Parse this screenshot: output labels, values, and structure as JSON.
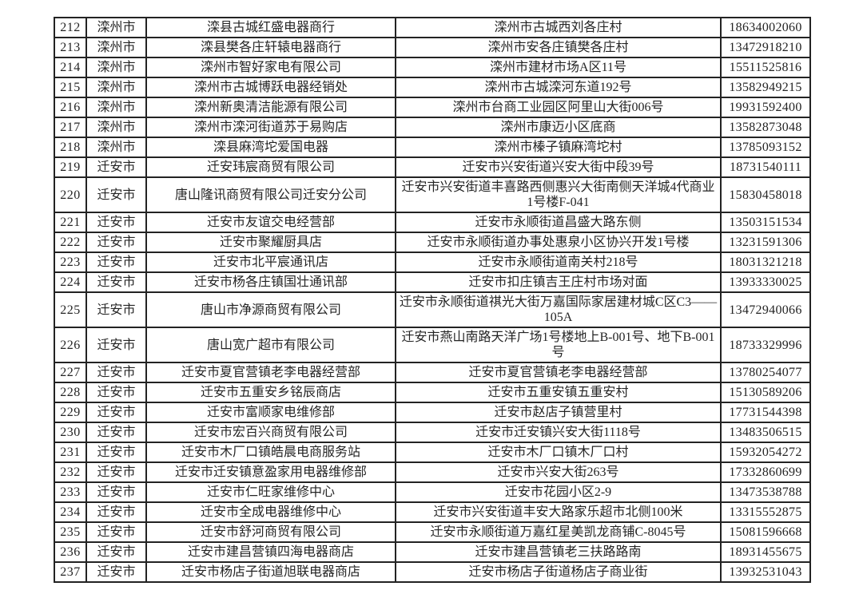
{
  "page": {
    "background": "#ffffff",
    "border_color": "#232323",
    "text_color": "#242424"
  },
  "table": {
    "rows": [
      {
        "no": "212",
        "city": "滦州市",
        "name": "滦县古城红盛电器商行",
        "address": "滦州市古城西刘各庄村",
        "phone": "18634002060"
      },
      {
        "no": "213",
        "city": "滦州市",
        "name": "滦县樊各庄轩辕电器商行",
        "address": "滦州市安各庄镇樊各庄村",
        "phone": "13472918210"
      },
      {
        "no": "214",
        "city": "滦州市",
        "name": "滦州市智好家电有限公司",
        "address": "滦州市建材市场A区11号",
        "phone": "15511525816"
      },
      {
        "no": "215",
        "city": "滦州市",
        "name": "滦州市古城博跃电器经销处",
        "address": "滦州市古城滦河东道192号",
        "phone": "13582949215"
      },
      {
        "no": "216",
        "city": "滦州市",
        "name": "滦州新奥清洁能源有限公司",
        "address": "滦州市台商工业园区阿里山大街006号",
        "phone": "19931592400"
      },
      {
        "no": "217",
        "city": "滦州市",
        "name": "滦州市滦河街道苏于易购店",
        "address": "滦州市康迈小区底商",
        "phone": "13582873048"
      },
      {
        "no": "218",
        "city": "滦州市",
        "name": "滦县麻湾坨爱国电器",
        "address": "滦州市榛子镇麻湾坨村",
        "phone": "13785093152"
      },
      {
        "no": "219",
        "city": "迁安市",
        "name": "迁安玮宸商贸有限公司",
        "address": "迁安市兴安街道兴安大街中段39号",
        "phone": "18731540111"
      },
      {
        "no": "220",
        "city": "迁安市",
        "name": "唐山隆讯商贸有限公司迁安分公司",
        "address": "迁安市兴安街道丰喜路西侧惠兴大街南侧天洋城4代商业1号楼F-041",
        "phone": "15830458018"
      },
      {
        "no": "221",
        "city": "迁安市",
        "name": "迁安市友谊交电经营部",
        "address": "迁安市永顺街道昌盛大路东侧",
        "phone": "13503151534"
      },
      {
        "no": "222",
        "city": "迁安市",
        "name": "迁安市聚耀厨具店",
        "address": "迁安市永顺街道办事处惠泉小区协兴开发1号楼",
        "phone": "13231591306"
      },
      {
        "no": "223",
        "city": "迁安市",
        "name": "迁安市北平宸通讯店",
        "address": "迁安市永顺街道南关村218号",
        "phone": "18031321218"
      },
      {
        "no": "224",
        "city": "迁安市",
        "name": "迁安市杨各庄镇国壮通讯部",
        "address": "迁安市扣庄镇吉王庄村市场对面",
        "phone": "13933330025"
      },
      {
        "no": "225",
        "city": "迁安市",
        "name": "唐山市净源商贸有限公司",
        "address": "迁安市永顺街道祺光大街万嘉国际家居建材城C区C3——105A",
        "phone": "13472940066"
      },
      {
        "no": "226",
        "city": "迁安市",
        "name": "唐山宽广超市有限公司",
        "address": "迁安市燕山南路天洋广场1号楼地上B-001号、地下B-001号",
        "phone": "18733329996"
      },
      {
        "no": "227",
        "city": "迁安市",
        "name": "迁安市夏官营镇老李电器经营部",
        "address": "迁安市夏官营镇老李电器经营部",
        "phone": "13780254077"
      },
      {
        "no": "228",
        "city": "迁安市",
        "name": "迁安市五重安乡铭辰商店",
        "address": "迁安市五重安镇五重安村",
        "phone": "15130589206"
      },
      {
        "no": "229",
        "city": "迁安市",
        "name": "迁安市富顺家电维修部",
        "address": "迁安市赵店子镇营里村",
        "phone": "17731544398"
      },
      {
        "no": "230",
        "city": "迁安市",
        "name": "迁安市宏百兴商贸有限公司",
        "address": "迁安市迁安镇兴安大街1118号",
        "phone": "13483506515"
      },
      {
        "no": "231",
        "city": "迁安市",
        "name": "迁安市木厂口镇皓晨电商服务站",
        "address": "迁安市木厂口镇木厂口村",
        "phone": "15932054272"
      },
      {
        "no": "232",
        "city": "迁安市",
        "name": "迁安市迁安镇意盈家用电器维修部",
        "address": "迁安市兴安大街263号",
        "phone": "17332860699"
      },
      {
        "no": "233",
        "city": "迁安市",
        "name": "迁安市仁旺家维修中心",
        "address": "迁安市花园小区2-9",
        "phone": "13473538788"
      },
      {
        "no": "234",
        "city": "迁安市",
        "name": "迁安市全成电器维修中心",
        "address": "迁安市兴安街道丰安大路家乐超市北侧100米",
        "phone": "13315552875"
      },
      {
        "no": "235",
        "city": "迁安市",
        "name": "迁安市舒河商贸有限公司",
        "address": "迁安市永顺街道万嘉红星美凯龙商铺C-8045号",
        "phone": "15081596668"
      },
      {
        "no": "236",
        "city": "迁安市",
        "name": "迁安市建昌营镇四海电器商店",
        "address": "迁安市建昌营镇老三扶路路南",
        "phone": "18931455675"
      },
      {
        "no": "237",
        "city": "迁安市",
        "name": "迁安市杨店子街道旭联电器商店",
        "address": "迁安市杨店子街道杨店子商业街",
        "phone": "13932531043"
      }
    ]
  }
}
